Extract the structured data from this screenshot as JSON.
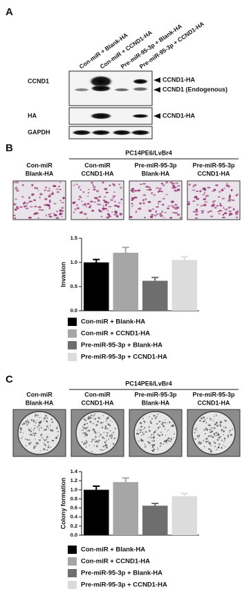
{
  "panels": {
    "a": "A",
    "b": "B",
    "c": "C"
  },
  "blot": {
    "lanes": [
      "Con-miR + Blank-HA",
      "Con-miR + CCND1-HA",
      "Pre-miR-95-3p + Blank-HA",
      "Pre-miR-95-3p + CCND1-HA"
    ],
    "rows": [
      "CCND1",
      "HA",
      "GAPDH"
    ],
    "bands": [
      "CCND1-HA",
      "CCND1 (Endogenous)",
      "CCND1-HA"
    ]
  },
  "panel_b": {
    "header": "PC14PE6/LvBr4",
    "columns": [
      [
        "Con-miR",
        "Blank-HA"
      ],
      [
        "Con-miR",
        "CCND1-HA"
      ],
      [
        "Pre-miR-95-3p",
        "Blank-HA"
      ],
      [
        "Pre-miR-95-3p",
        "CCND1-HA"
      ]
    ]
  },
  "panel_c": {
    "header": "PC14PE6/LvBr4",
    "columns": [
      [
        "Con-miR",
        "Blank-HA"
      ],
      [
        "Con-miR",
        "CCND1-HA"
      ],
      [
        "Pre-miR-95-3p",
        "Blank-HA"
      ],
      [
        "Pre-miR-95-3p",
        "CCND1-HA"
      ]
    ]
  },
  "chart_data": [
    {
      "type": "bar",
      "y_label": "Invasion",
      "categories": [
        "Con-miR + Blank-HA",
        "Con-miR + CCND1-HA",
        "Pre-miR-95-3p + Blank-HA",
        "Pre-miR-95-3p + CCND1-HA"
      ],
      "values": [
        1.0,
        1.2,
        0.62,
        1.05
      ],
      "errors": [
        0.06,
        0.11,
        0.07,
        0.07
      ],
      "colors": [
        "#000000",
        "#a6a6a6",
        "#6e6e6e",
        "#dcdcdc"
      ],
      "ylim": [
        0,
        1.5
      ],
      "yticks": [
        {
          "value": 0,
          "label": "0.0"
        },
        0.5,
        {
          "value": 1,
          "label": "1.0"
        },
        1.5
      ]
    },
    {
      "type": "bar",
      "y_label": "Colony formation",
      "categories": [
        "Con-miR + Blank-HA",
        "Con-miR + CCND1-HA",
        "Pre-miR-95-3p + Blank-HA",
        "Pre-miR-95-3p + CCND1-HA"
      ],
      "values": [
        1.0,
        1.17,
        0.65,
        0.86
      ],
      "errors": [
        0.08,
        0.09,
        0.05,
        0.06
      ],
      "colors": [
        "#000000",
        "#a6a6a6",
        "#6e6e6e",
        "#dcdcdc"
      ],
      "ylim": [
        0,
        1.4
      ],
      "yticks": [
        {
          "value": 0,
          "label": "0.0"
        },
        0.2,
        0.4,
        0.6,
        0.8,
        {
          "value": 1,
          "label": "1.0"
        },
        1.2,
        1.4
      ]
    }
  ]
}
